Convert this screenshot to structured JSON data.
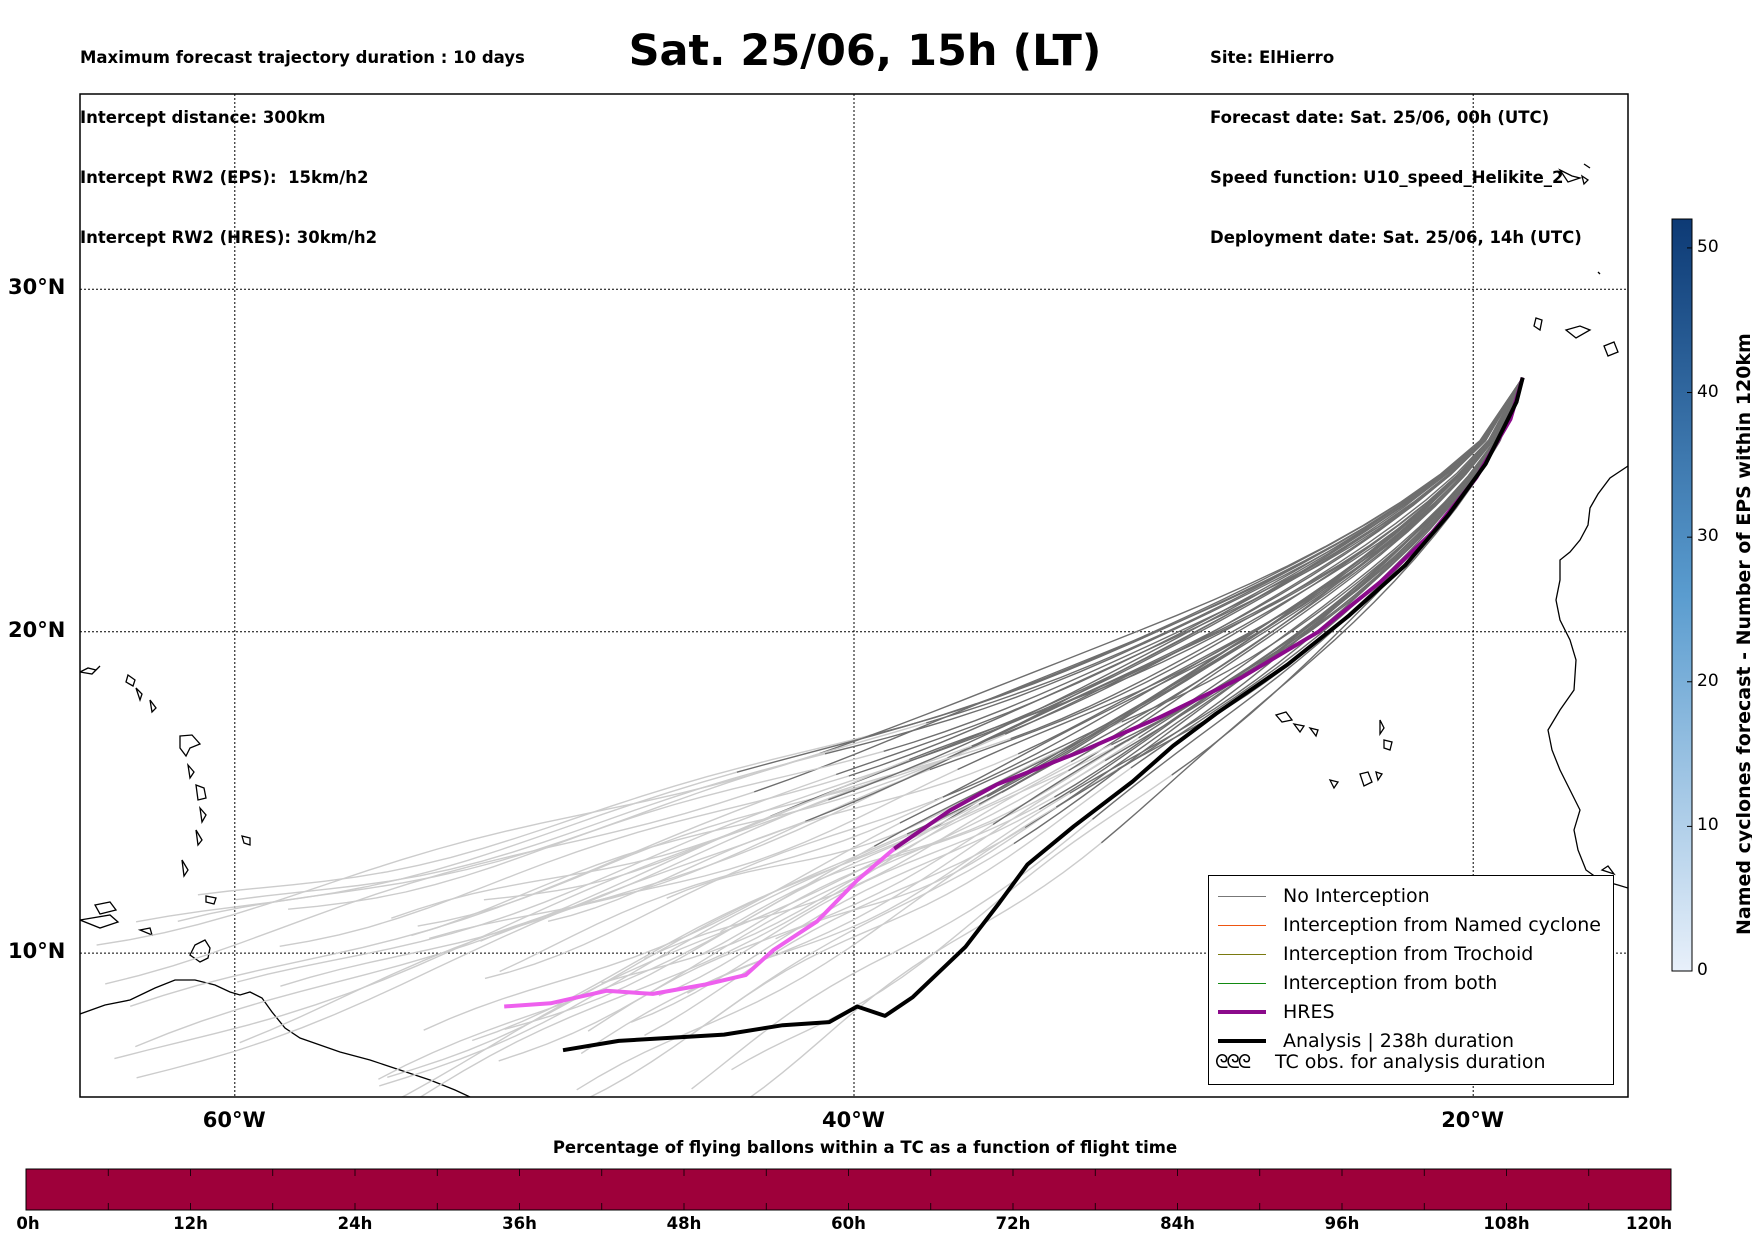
{
  "header": {
    "left": [
      "Maximum forecast trajectory duration : 10 days",
      "Intercept distance: 300km",
      "Intercept RW2 (EPS):  15km/h2",
      "Intercept RW2 (HRES): 30km/h2"
    ],
    "title": "Sat. 25/06, 15h (LT)",
    "right": [
      "Site: ElHierro",
      "Forecast date: Sat. 25/06, 00h (UTC)",
      "Speed function: U10_speed_Helikite_2",
      "Deployment date: Sat. 25/06, 14h (UTC)"
    ]
  },
  "map": {
    "lat_labels": [
      "30°N",
      "20°N",
      "10°N"
    ],
    "lon_labels": [
      "60°W",
      "40°W",
      "20°W"
    ],
    "lat_lines": [
      30,
      20,
      10
    ],
    "lon_lines": [
      -60,
      -40,
      -20
    ],
    "extent": {
      "lon_min": -65,
      "lon_max": -15,
      "lat_min": 5.4,
      "lat_max": 35.3
    },
    "colors": {
      "ensemble_dark": "#6e6e6e",
      "ensemble_light": "#cccccc",
      "hres": "#8b0a8b",
      "hres_early": "#ee60ee",
      "analysis": "#000000",
      "coast": "#000000"
    },
    "hres_track": [
      [
        -51.3,
        8.3
      ],
      [
        -49.8,
        8.4
      ],
      [
        -48.0,
        8.8
      ],
      [
        -46.5,
        8.7
      ],
      [
        -44.8,
        9.0
      ],
      [
        -43.5,
        9.3
      ],
      [
        -42.6,
        10.1
      ],
      [
        -41.2,
        11.0
      ],
      [
        -39.9,
        12.3
      ],
      [
        -38.7,
        13.3
      ],
      [
        -36.9,
        14.5
      ],
      [
        -35.4,
        15.3
      ],
      [
        -32.5,
        16.4
      ],
      [
        -30.1,
        17.4
      ],
      [
        -27.5,
        18.6
      ],
      [
        -25.0,
        20.0
      ],
      [
        -23.0,
        21.5
      ],
      [
        -21.3,
        23.0
      ],
      [
        -19.9,
        24.6
      ],
      [
        -18.8,
        26.3
      ],
      [
        -18.4,
        27.5
      ]
    ],
    "hres_split_index": 9,
    "analysis_track": [
      [
        -49.4,
        6.9
      ],
      [
        -47.6,
        7.2
      ],
      [
        -45.9,
        7.3
      ],
      [
        -44.2,
        7.4
      ],
      [
        -42.3,
        7.7
      ],
      [
        -40.8,
        7.8
      ],
      [
        -39.9,
        8.3
      ],
      [
        -39.0,
        8.0
      ],
      [
        -38.1,
        8.6
      ],
      [
        -36.4,
        10.2
      ],
      [
        -35.3,
        11.6
      ],
      [
        -34.4,
        12.8
      ],
      [
        -32.9,
        14.0
      ],
      [
        -31.0,
        15.4
      ],
      [
        -29.7,
        16.5
      ],
      [
        -28.3,
        17.5
      ],
      [
        -26.0,
        19.0
      ],
      [
        -24.0,
        20.5
      ],
      [
        -22.2,
        22.0
      ],
      [
        -20.8,
        23.5
      ],
      [
        -19.6,
        25.0
      ],
      [
        -18.6,
        26.8
      ],
      [
        -18.4,
        27.5
      ]
    ],
    "ensemble_count": 51,
    "ensemble_seed": 20250625
  },
  "legend": {
    "items": [
      {
        "label": "No Interception",
        "color": "#777777",
        "width": 1.2
      },
      {
        "label": "Interception from Named cyclone",
        "color": "#ee5511",
        "width": 1.2
      },
      {
        "label": "Interception from Trochoid",
        "color": "#7a7a10",
        "width": 1.2
      },
      {
        "label": "Interception from both",
        "color": "#128a12",
        "width": 1.2
      },
      {
        "label": "HRES",
        "color": "#8b0a8b",
        "width": 4
      },
      {
        "label": "Analysis | 238h duration",
        "color": "#000000",
        "width": 4
      }
    ],
    "tc_symbol": "ᘓᘓᘓ",
    "tc_label": "TC obs. for analysis duration"
  },
  "colorbar": {
    "label": "Named cyclones forecast - Number of EPS within 120km",
    "ticks": [
      "0",
      "10",
      "20",
      "30",
      "40",
      "50"
    ],
    "tick_values": [
      0,
      10,
      20,
      30,
      40,
      50
    ],
    "max": 52,
    "color_low": "#e8f0fa",
    "color_high": "#0d3a75"
  },
  "bottom_bar": {
    "title": "Percentage of flying ballons within a TC as a function of flight time",
    "ticks": [
      "0h",
      "12h",
      "24h",
      "36h",
      "48h",
      "60h",
      "72h",
      "84h",
      "96h",
      "108h",
      "120h"
    ],
    "fill_color": "#9e003a"
  }
}
